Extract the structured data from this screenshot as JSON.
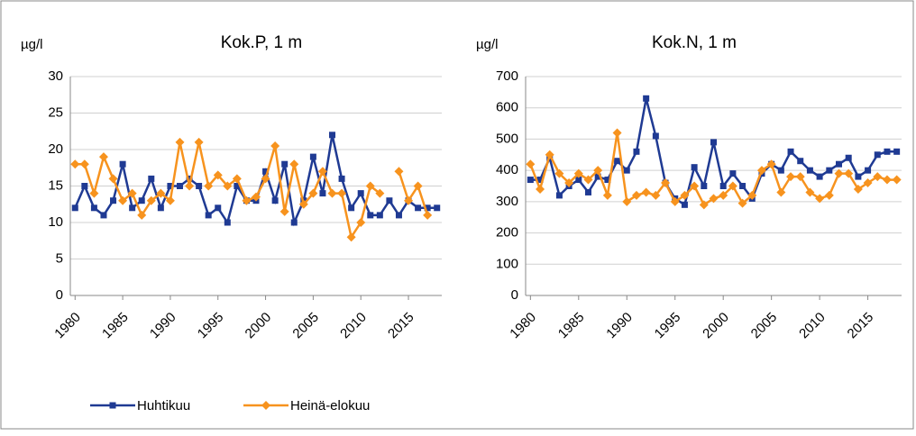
{
  "chart_data": [
    {
      "type": "line",
      "title": "Kok.P, 1 m",
      "y_label": "µg/l",
      "x": [
        1980,
        1981,
        1982,
        1983,
        1984,
        1985,
        1986,
        1987,
        1988,
        1989,
        1990,
        1991,
        1992,
        1993,
        1994,
        1995,
        1996,
        1997,
        1998,
        1999,
        2000,
        2001,
        2002,
        2003,
        2004,
        2005,
        2006,
        2007,
        2008,
        2009,
        2010,
        2011,
        2012,
        2013,
        2014,
        2015,
        2016,
        2017,
        2018
      ],
      "xlim": [
        1979.5,
        2018.5
      ],
      "xticks": [
        1980,
        1985,
        1990,
        1995,
        2000,
        2005,
        2010,
        2015
      ],
      "ylim": [
        0,
        30
      ],
      "yticks": [
        0,
        5,
        10,
        15,
        20,
        25,
        30
      ],
      "grid": true,
      "legend": "bottom",
      "series": [
        {
          "name": "Huhtikuu",
          "color": "#1f3a93",
          "marker": "square",
          "values": [
            12,
            15,
            12,
            11,
            13,
            18,
            12,
            13,
            16,
            12,
            15,
            15,
            16,
            15,
            11,
            12,
            10,
            15,
            13,
            13,
            17,
            13,
            18,
            10,
            13,
            19,
            14,
            22,
            16,
            12,
            14,
            11,
            11,
            13,
            11,
            13,
            12,
            12,
            12
          ]
        },
        {
          "name": "Heinä-elokuu",
          "color": "#f7931e",
          "marker": "diamond",
          "values": [
            18,
            18,
            14,
            19,
            16,
            13,
            14,
            11,
            13,
            14,
            13,
            21,
            15,
            21,
            15,
            16.5,
            15,
            16,
            13,
            13.5,
            16,
            20.5,
            11.5,
            18,
            12.5,
            14,
            17,
            14,
            14,
            8,
            10,
            15,
            14,
            null,
            17,
            13,
            15,
            11,
            null
          ]
        }
      ]
    },
    {
      "type": "line",
      "title": "Kok.N, 1 m",
      "y_label": "µg/l",
      "x": [
        1980,
        1981,
        1982,
        1983,
        1984,
        1985,
        1986,
        1987,
        1988,
        1989,
        1990,
        1991,
        1992,
        1993,
        1994,
        1995,
        1996,
        1997,
        1998,
        1999,
        2000,
        2001,
        2002,
        2003,
        2004,
        2005,
        2006,
        2007,
        2008,
        2009,
        2010,
        2011,
        2012,
        2013,
        2014,
        2015,
        2016,
        2017,
        2018
      ],
      "xlim": [
        1979.5,
        2018.5
      ],
      "xticks": [
        1980,
        1985,
        1990,
        1995,
        2000,
        2005,
        2010,
        2015
      ],
      "ylim": [
        0,
        700
      ],
      "yticks": [
        0,
        100,
        200,
        300,
        400,
        500,
        600,
        700
      ],
      "grid": true,
      "series": [
        {
          "name": "Huhtikuu",
          "color": "#1f3a93",
          "marker": "square",
          "values": [
            370,
            370,
            440,
            320,
            350,
            370,
            330,
            380,
            370,
            430,
            400,
            460,
            630,
            510,
            360,
            310,
            290,
            410,
            350,
            490,
            350,
            390,
            350,
            310,
            390,
            420,
            400,
            460,
            430,
            400,
            380,
            400,
            420,
            440,
            380,
            400,
            450,
            460,
            460
          ]
        },
        {
          "name": "Heinä-elokuu",
          "color": "#f7931e",
          "marker": "diamond",
          "values": [
            420,
            340,
            450,
            390,
            360,
            390,
            370,
            400,
            320,
            520,
            300,
            320,
            330,
            320,
            360,
            300,
            320,
            350,
            290,
            310,
            320,
            350,
            295,
            320,
            400,
            420,
            330,
            380,
            380,
            330,
            310,
            320,
            390,
            390,
            340,
            360,
            380,
            370,
            370
          ]
        }
      ]
    }
  ]
}
